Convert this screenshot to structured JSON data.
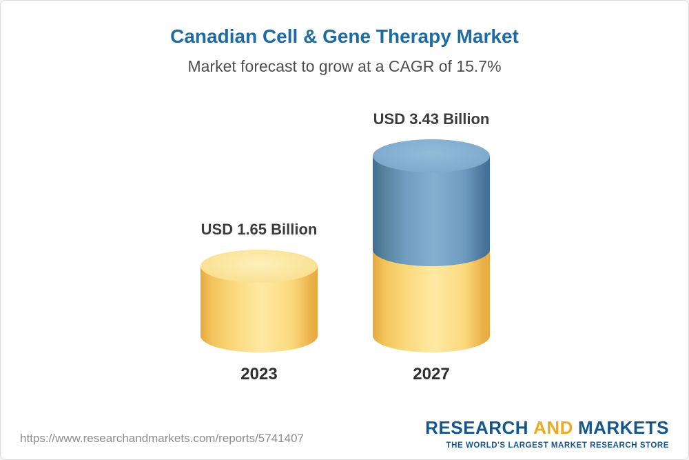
{
  "header": {
    "title": "Canadian Cell & Gene Therapy Market",
    "subtitle": "Market forecast to grow at a CAGR of 15.7%"
  },
  "chart_data": {
    "type": "bar",
    "title": "Canadian Cell & Gene Therapy Market",
    "subtitle": "Market forecast to grow at a CAGR of 15.7%",
    "unit": "USD Billion",
    "cagr_percent": 15.7,
    "categories": [
      "2023",
      "2027"
    ],
    "values": [
      1.65,
      3.43
    ],
    "bars": [
      {
        "year": "2023",
        "value": 1.65,
        "value_label": "USD 1.65 Billion",
        "segments": [
          {
            "name": "base",
            "color": "yellow",
            "value": 1.65
          }
        ]
      },
      {
        "year": "2027",
        "value": 3.43,
        "value_label": "USD 3.43 Billion",
        "segments": [
          {
            "name": "base",
            "color": "yellow",
            "value": 1.65
          },
          {
            "name": "growth",
            "color": "blue",
            "value": 1.78
          }
        ]
      }
    ],
    "legend": null,
    "grid": false,
    "ylim": [
      0,
      3.43
    ]
  },
  "footer": {
    "url": "https://www.researchandmarkets.com/reports/5741407",
    "logo": {
      "part1": "RESEARCH",
      "part2": "AND",
      "part3": "MARKETS",
      "tagline": "THE WORLD'S LARGEST MARKET RESEARCH STORE"
    }
  },
  "colors": {
    "border": "#dcdcdc",
    "title_blue": "#1c6ba5",
    "subtitle_gray": "#4d4d4d",
    "label_dark": "#3c3c3c",
    "year_dark": "#2f2f2f",
    "url_gray": "#8c8c8c",
    "logo_blue": "#15568d",
    "logo_gold": "#efaa1d",
    "yellow_edge": "#e5a93e",
    "yellow_mid": "#fee9a4",
    "yellow_cap_light": "#fdf0bb",
    "blue_edge": "#3e6e98",
    "blue_mid": "#86afce",
    "blue_cap_light": "#93bcd9"
  }
}
